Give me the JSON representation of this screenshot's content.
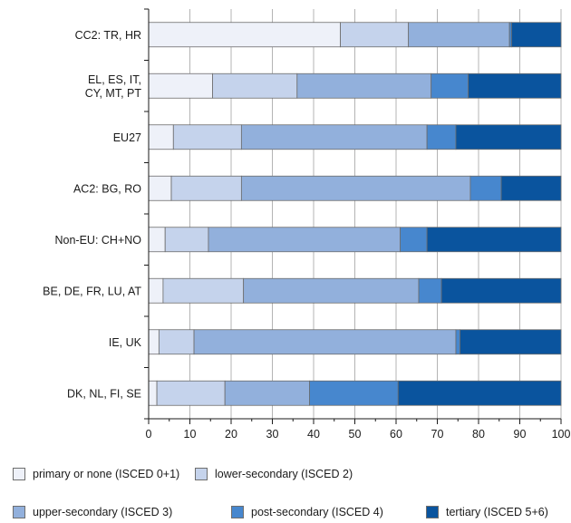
{
  "chart_data": {
    "type": "bar",
    "orientation": "horizontal",
    "stacked": true,
    "categories": [
      "CC2: TR, HR",
      "EL, ES, IT,\nCY, MT, PT",
      "EU27",
      "AC2: BG, RO",
      "Non-EU: CH+NO",
      "BE, DE, FR, LU, AT",
      "IE, UK",
      "DK, NL, FI, SE"
    ],
    "series": [
      {
        "name": "primary or none (ISCED 0+1)",
        "color": "#eef1f9",
        "values": [
          46.5,
          15.5,
          6.0,
          5.5,
          4.0,
          3.5,
          2.5,
          2.0
        ]
      },
      {
        "name": "lower-secondary (ISCED 2)",
        "color": "#c5d3ec",
        "values": [
          16.5,
          20.5,
          16.5,
          17.0,
          10.5,
          19.5,
          8.5,
          16.5
        ]
      },
      {
        "name": "upper-secondary (ISCED 3)",
        "color": "#92b0dc",
        "values": [
          24.5,
          32.5,
          45.0,
          55.5,
          46.5,
          42.5,
          63.5,
          20.5
        ]
      },
      {
        "name": "post-secondary  (ISCED 4)",
        "color": "#4787ce",
        "values": [
          0.5,
          9.0,
          7.0,
          7.5,
          6.5,
          5.5,
          1.0,
          21.5
        ]
      },
      {
        "name": "tertiary  (ISCED 5+6)",
        "color": "#0a549e",
        "values": [
          12.0,
          22.5,
          25.5,
          14.5,
          32.5,
          29.0,
          24.5,
          39.5
        ]
      }
    ],
    "xlim": [
      0,
      100
    ],
    "xticks": [
      0,
      10,
      20,
      30,
      40,
      50,
      60,
      70,
      80,
      90,
      100
    ],
    "title": "",
    "xlabel": "",
    "ylabel": "",
    "grid": true,
    "legend_placement": "bottom"
  }
}
